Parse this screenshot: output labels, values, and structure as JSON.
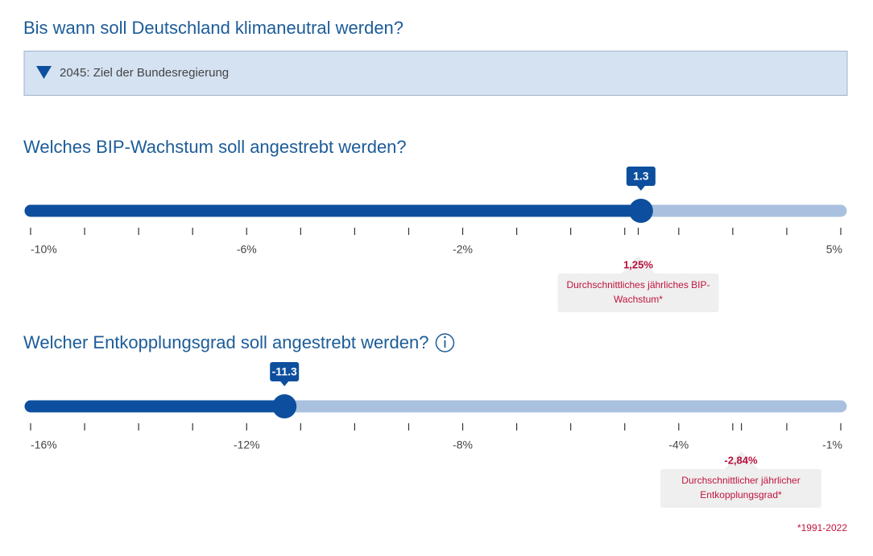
{
  "question": "Bis wann soll Deutschland klimaneutral werden?",
  "dropdown": {
    "selected": "2045: Ziel der Bundesregierung"
  },
  "sliders": [
    {
      "title": "Welches BIP-Wachstum soll angestrebt werden?",
      "min": -10,
      "max": 5,
      "value": 1.3,
      "ticks": [
        -10,
        -9,
        -8,
        -7,
        -6,
        -5,
        -4,
        -3,
        -2,
        -1,
        0,
        1,
        2,
        3,
        4,
        5
      ],
      "tick_labels": [
        {
          "value": -10,
          "label": "-10%"
        },
        {
          "value": -6,
          "label": "-6%"
        },
        {
          "value": -2,
          "label": "-2%"
        },
        {
          "value": 5,
          "label": "5%"
        }
      ],
      "reference": {
        "value": 1.25,
        "label": "1,25%",
        "caption": [
          "Durchschnittliches jährliches BIP-",
          "Wachstum*"
        ]
      }
    },
    {
      "title": "Welcher Entkopplungsgrad soll angestrebt werden?",
      "min": -16,
      "max": -1,
      "value": -11.3,
      "ticks": [
        -16,
        -15,
        -14,
        -13,
        -12,
        -11,
        -10,
        -9,
        -8,
        -7,
        -6,
        -5,
        -4,
        -3,
        -2,
        -1
      ],
      "tick_labels": [
        {
          "value": -16,
          "label": "-16%"
        },
        {
          "value": -12,
          "label": "-12%"
        },
        {
          "value": -8,
          "label": "-8%"
        },
        {
          "value": -4,
          "label": "-4%"
        },
        {
          "value": -1,
          "label": "-1%"
        }
      ],
      "reference": {
        "value": -2.84,
        "label": "-2,84%",
        "caption": [
          "Durchschnittlicher jährlicher",
          "Entkopplungsgrad*"
        ]
      }
    }
  ],
  "footnote": "*1991-2022"
}
